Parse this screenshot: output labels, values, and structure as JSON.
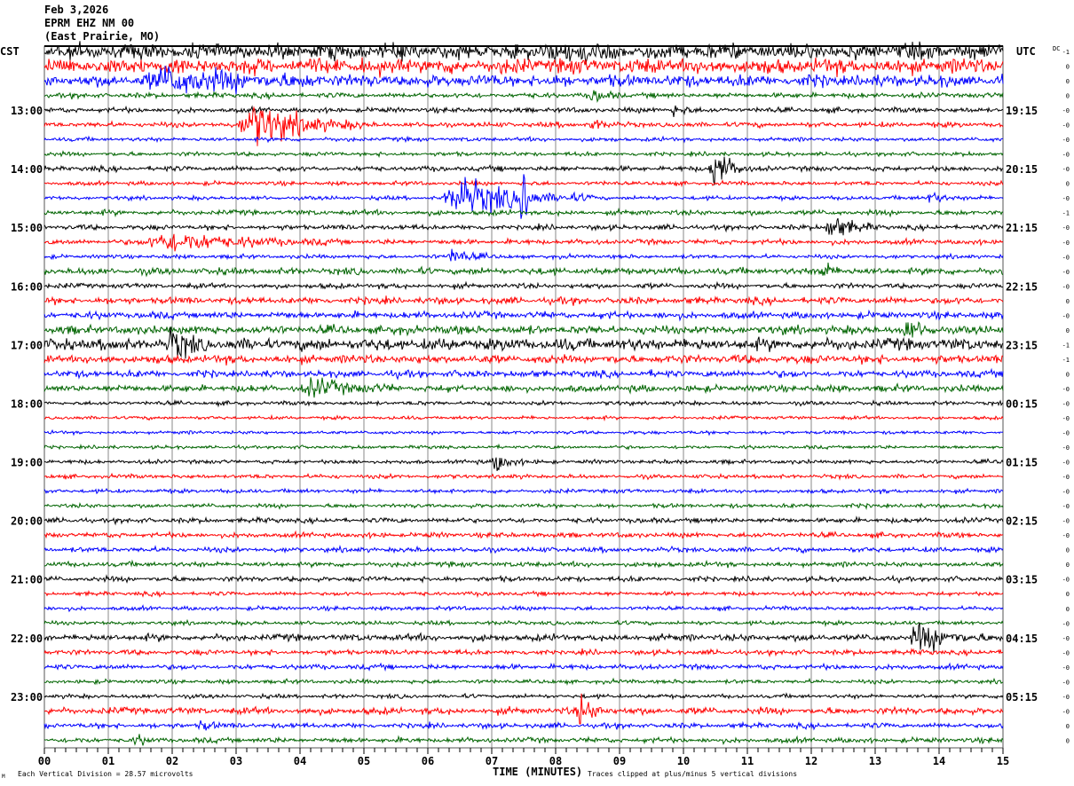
{
  "header": {
    "date": "Feb 3,2026",
    "station": "EPRM EHZ NM 00",
    "location": "(East Prairie, MO)"
  },
  "chart_data": {
    "type": "line",
    "title": "",
    "xlabel": "TIME (MINUTES)",
    "xlim": [
      0,
      15
    ],
    "x_tick_labels": [
      "00",
      "01",
      "02",
      "03",
      "04",
      "05",
      "06",
      "07",
      "08",
      "09",
      "10",
      "11",
      "12",
      "13",
      "14",
      "15"
    ],
    "left_axis_title": "CST",
    "right_axis_title": "UTC",
    "dc_title": "DC",
    "left_hour_labels": [
      {
        "row": 4,
        "label": "13:00"
      },
      {
        "row": 8,
        "label": "14:00"
      },
      {
        "row": 12,
        "label": "15:00"
      },
      {
        "row": 16,
        "label": "16:00"
      },
      {
        "row": 20,
        "label": "17:00"
      },
      {
        "row": 24,
        "label": "18:00"
      },
      {
        "row": 28,
        "label": "19:00"
      },
      {
        "row": 32,
        "label": "20:00"
      },
      {
        "row": 36,
        "label": "21:00"
      },
      {
        "row": 40,
        "label": "22:00"
      },
      {
        "row": 44,
        "label": "23:00"
      }
    ],
    "right_hour_labels": [
      {
        "row": 4,
        "label": "19:15"
      },
      {
        "row": 8,
        "label": "20:15"
      },
      {
        "row": 12,
        "label": "21:15"
      },
      {
        "row": 16,
        "label": "22:15"
      },
      {
        "row": 20,
        "label": "23:15"
      },
      {
        "row": 24,
        "label": "00:15"
      },
      {
        "row": 28,
        "label": "01:15"
      },
      {
        "row": 32,
        "label": "02:15"
      },
      {
        "row": 36,
        "label": "03:15"
      },
      {
        "row": 40,
        "label": "04:15"
      },
      {
        "row": 44,
        "label": "05:15"
      }
    ],
    "dc_offsets": [
      "-1",
      "0",
      "0",
      "0",
      "-0",
      "-0",
      "-0",
      "-0",
      "-0",
      "0",
      "-0",
      "-1",
      "-0",
      "-0",
      "-0",
      "-0",
      "-0",
      "0",
      "-0",
      "0",
      "-1",
      "-1",
      "0",
      "-0",
      "-0",
      "-0",
      "-0",
      "-0",
      "-0",
      "-0",
      "-0",
      "-0",
      "-0",
      "-0",
      "0",
      "0",
      "-0",
      "0",
      "0",
      "-0",
      "-0",
      "-0",
      "-0",
      "-0",
      "-0",
      "-0",
      "0",
      "0"
    ],
    "trace_colors": [
      "#000000",
      "#ff0000",
      "#0000ff",
      "#006400"
    ],
    "row_count": 48,
    "row_minutes": 15,
    "clip_divisions": 5,
    "noise_divisions": [
      0.45,
      0.45,
      0.35,
      0.15,
      0.15,
      0.15,
      0.12,
      0.12,
      0.15,
      0.12,
      0.12,
      0.15,
      0.15,
      0.15,
      0.12,
      0.2,
      0.15,
      0.2,
      0.2,
      0.25,
      0.35,
      0.25,
      0.2,
      0.2,
      0.12,
      0.1,
      0.1,
      0.1,
      0.12,
      0.12,
      0.12,
      0.12,
      0.15,
      0.15,
      0.15,
      0.15,
      0.15,
      0.12,
      0.12,
      0.12,
      0.2,
      0.15,
      0.15,
      0.12,
      0.12,
      0.2,
      0.15,
      0.15
    ],
    "events": [
      {
        "row": 0,
        "start": 7.9,
        "end": 9.2,
        "amp": 0.5
      },
      {
        "row": 2,
        "start": 1.5,
        "end": 4.6,
        "amp": 0.8
      },
      {
        "row": 3,
        "start": 8.5,
        "end": 9.1,
        "amp": 0.4
      },
      {
        "row": 4,
        "start": 9.8,
        "end": 10.2,
        "amp": 0.5
      },
      {
        "row": 5,
        "start": 3.0,
        "end": 5.0,
        "amp": 1.6
      },
      {
        "row": 5,
        "start": 8.5,
        "end": 8.9,
        "amp": 0.5
      },
      {
        "row": 8,
        "start": 10.4,
        "end": 11.0,
        "amp": 1.8
      },
      {
        "row": 10,
        "start": 6.2,
        "end": 8.6,
        "amp": 1.4
      },
      {
        "row": 10,
        "start": 7.45,
        "end": 7.6,
        "amp": 5.0
      },
      {
        "row": 10,
        "start": 13.8,
        "end": 14.3,
        "amp": 0.5
      },
      {
        "row": 12,
        "start": 12.2,
        "end": 13.0,
        "amp": 1.0
      },
      {
        "row": 13,
        "start": 1.5,
        "end": 4.5,
        "amp": 0.7
      },
      {
        "row": 14,
        "start": 6.3,
        "end": 7.0,
        "amp": 0.6
      },
      {
        "row": 15,
        "start": 12.1,
        "end": 12.6,
        "amp": 0.6
      },
      {
        "row": 19,
        "start": 13.4,
        "end": 14.1,
        "amp": 0.6
      },
      {
        "row": 20,
        "start": 1.9,
        "end": 2.6,
        "amp": 1.0
      },
      {
        "row": 23,
        "start": 4.0,
        "end": 5.5,
        "amp": 0.6
      },
      {
        "row": 28,
        "start": 7.0,
        "end": 7.5,
        "amp": 0.9
      },
      {
        "row": 40,
        "start": 13.5,
        "end": 14.8,
        "amp": 0.9
      },
      {
        "row": 45,
        "start": 8.3,
        "end": 8.9,
        "amp": 1.0
      },
      {
        "row": 46,
        "start": 2.4,
        "end": 2.8,
        "amp": 0.4
      },
      {
        "row": 47,
        "start": 1.4,
        "end": 1.7,
        "amp": 0.4
      }
    ]
  },
  "footer": {
    "vertical_division": "Each Vertical Division =   28.57 microvolts",
    "clipping": "Traces clipped at plus/minus 5 vertical divisions",
    "logo": "M"
  }
}
